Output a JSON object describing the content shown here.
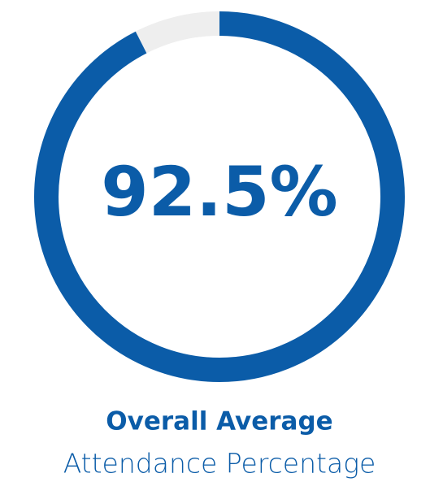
{
  "chart_data": {
    "type": "gauge",
    "value": 92.5,
    "value_label": "92.5%",
    "range": [
      0,
      100
    ],
    "color": "#0b5ca8",
    "track_color": "#eeeeee",
    "title": "Overall Average",
    "subtitle": "Attendance Percentage"
  }
}
